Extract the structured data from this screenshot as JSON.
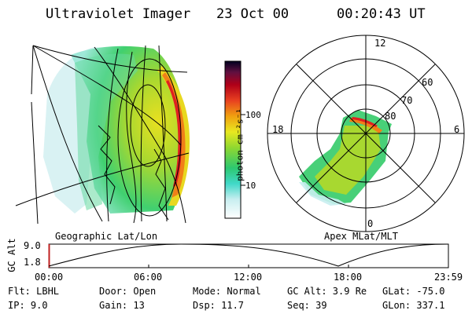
{
  "header": {
    "title": "Ultraviolet Imager",
    "date": "23 Oct 00",
    "time": "00:20:43 UT"
  },
  "colorbar": {
    "label": "photon cm⁻²s⁻¹",
    "tick_100": "100",
    "tick_10": "10"
  },
  "left_panel": {
    "caption": "Geographic Lat/Lon"
  },
  "right_panel": {
    "caption": "Apex MLat/MLT",
    "mlt_12": "12",
    "mlt_18": "18",
    "mlt_6": "6",
    "mlt_0": "0",
    "lat_60": "60",
    "lat_70": "70",
    "lat_80": "80"
  },
  "altitude_strip": {
    "ylabel": "GC Alt",
    "y_top": "9.0",
    "y_bottom": "1.8",
    "times": [
      "00:00",
      "06:00",
      "12:00",
      "18:00",
      "23:59"
    ]
  },
  "info": {
    "flt": "Flt: LBHL",
    "ip": "IP:  9.0",
    "door": "Door: Open",
    "gain": "Gain: 13",
    "mode": "Mode: Normal",
    "dsp": "Dsp:   11.7",
    "gcalt": "GC Alt: 3.9 Re",
    "seq": "Seq: 39",
    "glat": "GLat: -75.0",
    "glon": "GLon: 337.1"
  }
}
